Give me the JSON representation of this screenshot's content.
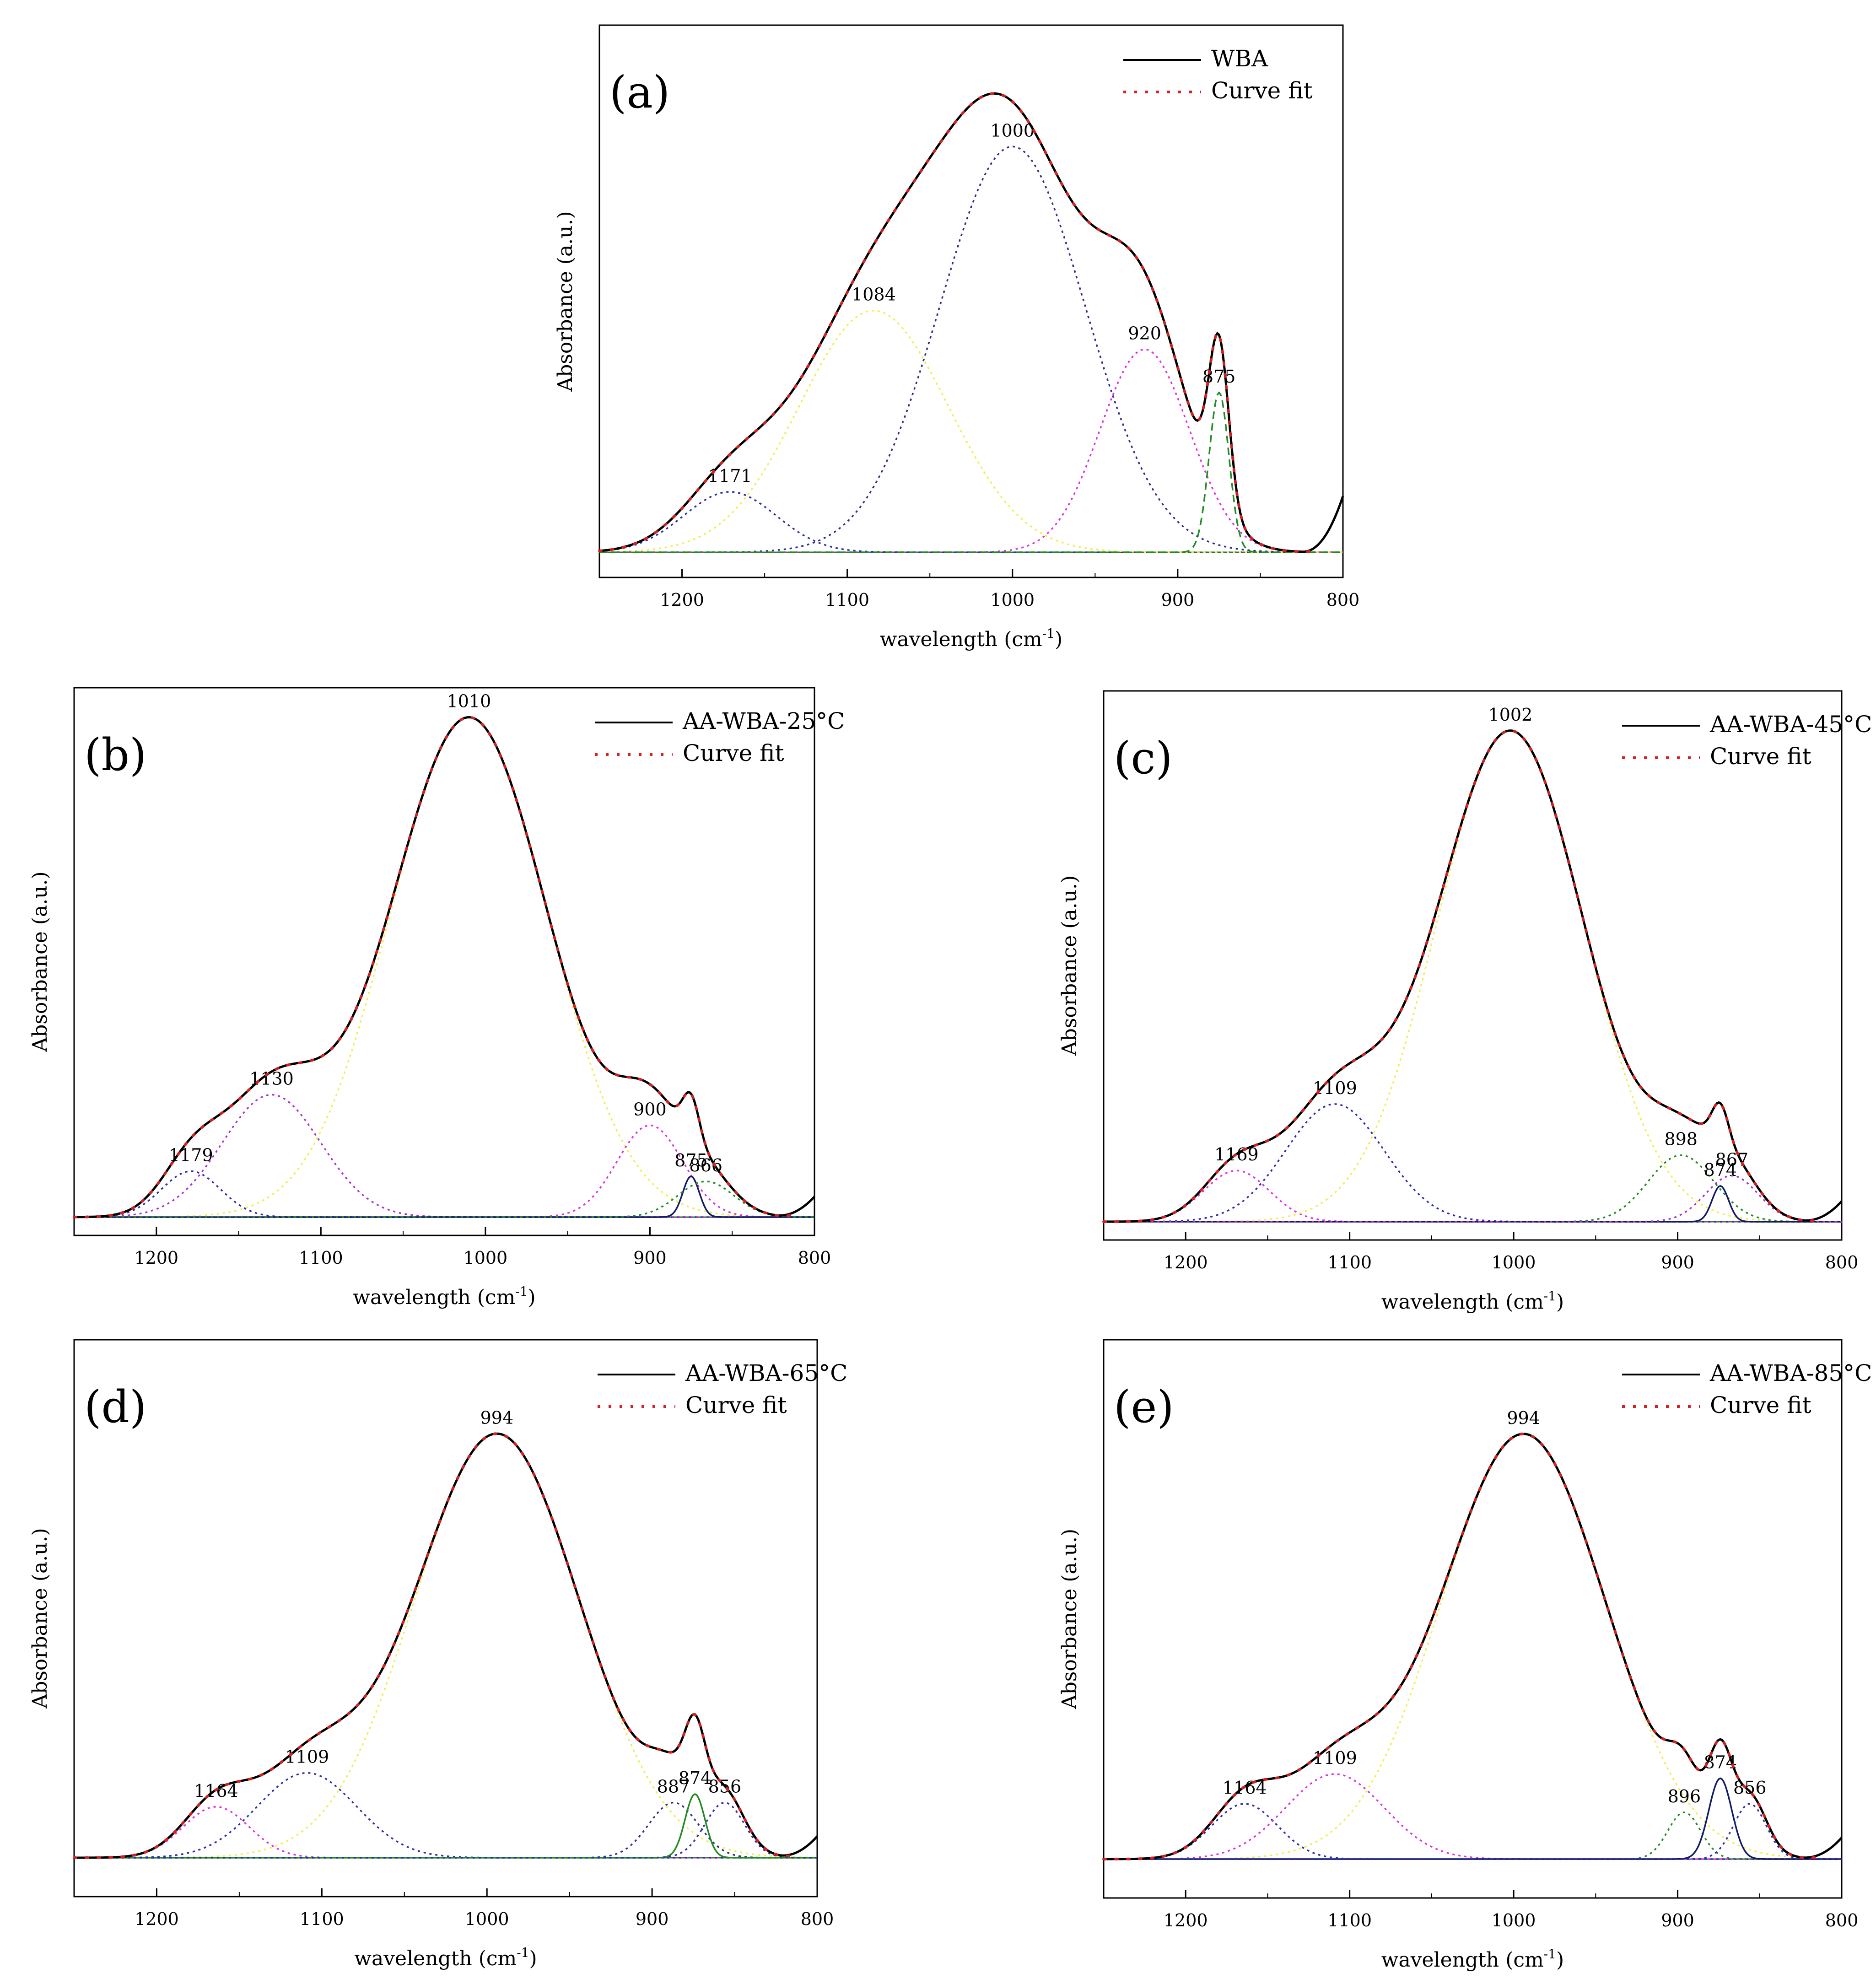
{
  "chart_data": [
    {
      "type": "line",
      "panel_label": "(a)",
      "xlabel": "wavelength (cm",
      "xlabel_sup": "-1",
      "xlabel_close": ")",
      "ylabel": "Absorbance (a.u.)",
      "xlim": [
        1250,
        800
      ],
      "ylim": [
        0,
        1.2
      ],
      "xticks": [
        1200,
        1100,
        1000,
        900,
        800
      ],
      "xtick_labels": [
        "1200",
        "1100",
        "1000",
        "900",
        "800"
      ],
      "legend": [
        {
          "label": "WBA",
          "style": "solid"
        },
        {
          "label": "Curve fit",
          "style": "dotted"
        }
      ],
      "main_series": {
        "name": "WBA",
        "color": "#000000"
      },
      "fit_series": {
        "name": "Curve fit",
        "color": "#d62020"
      },
      "tail": {
        "x": 800,
        "y": 0.13
      },
      "peaks": [
        {
          "label": "1171",
          "center": 1171,
          "height": 0.14,
          "width": 28,
          "color": "#2e2eaa",
          "style": "dotted"
        },
        {
          "label": "1084",
          "center": 1084,
          "height": 0.56,
          "width": 45,
          "color": "#f2ee50",
          "style": "dotted"
        },
        {
          "label": "1000",
          "center": 1000,
          "height": 0.94,
          "width": 44,
          "color": "#2e2e8c",
          "style": "dotted"
        },
        {
          "label": "920",
          "center": 920,
          "height": 0.47,
          "width": 27,
          "color": "#dd33dd",
          "style": "dotted"
        },
        {
          "label": "875",
          "center": 875,
          "height": 0.37,
          "width": 6,
          "color": "#228b22",
          "style": "dashed"
        }
      ]
    },
    {
      "type": "line",
      "panel_label": "(b)",
      "xlabel": "wavelength (cm",
      "xlabel_sup": "-1",
      "xlabel_close": ")",
      "ylabel": "Absorbance (a.u.)",
      "xlim": [
        1250,
        800
      ],
      "ylim": [
        0,
        1.02
      ],
      "xticks": [
        1200,
        1100,
        1000,
        900,
        800
      ],
      "xtick_labels": [
        "1200",
        "1100",
        "1000",
        "900",
        "800"
      ],
      "legend": [
        {
          "label": "AA-WBA-25°C",
          "style": "solid"
        },
        {
          "label": "Curve fit",
          "style": "dotted"
        }
      ],
      "main_series": {
        "name": "AA-WBA-25°C",
        "color": "#000000"
      },
      "fit_series": {
        "name": "Curve fit",
        "color": "#d62020"
      },
      "tail": {
        "x": 800,
        "y": 0.04
      },
      "peaks": [
        {
          "label": "1179",
          "center": 1179,
          "height": 0.09,
          "width": 18,
          "color": "#2e2eaa",
          "style": "dotted"
        },
        {
          "label": "1130",
          "center": 1130,
          "height": 0.24,
          "width": 30,
          "color": "#aa33cc",
          "style": "dotted"
        },
        {
          "label": "1010",
          "center": 1010,
          "height": 0.98,
          "width": 48,
          "color": "#f2ee50",
          "style": "dotted"
        },
        {
          "label": "900",
          "center": 900,
          "height": 0.18,
          "width": 20,
          "color": "#dd33dd",
          "style": "dotted"
        },
        {
          "label": "875",
          "center": 875,
          "height": 0.08,
          "width": 5,
          "color": "#111a66",
          "style": "solid"
        },
        {
          "label": "866",
          "center": 866,
          "height": 0.07,
          "width": 17,
          "color": "#228b22",
          "style": "dotted"
        }
      ]
    },
    {
      "type": "line",
      "panel_label": "(c)",
      "xlabel": "wavelength (cm",
      "xlabel_sup": "-1",
      "xlabel_close": ")",
      "ylabel": "Absorbance (a.u.)",
      "xlim": [
        1250,
        800
      ],
      "ylim": [
        0,
        1.02
      ],
      "xticks": [
        1200,
        1100,
        1000,
        900,
        800
      ],
      "xtick_labels": [
        "1200",
        "1100",
        "1000",
        "900",
        "800"
      ],
      "legend": [
        {
          "label": "AA-WBA-45°C",
          "style": "solid"
        },
        {
          "label": "Curve fit",
          "style": "dotted"
        }
      ],
      "main_series": {
        "name": "AA-WBA-45°C",
        "color": "#000000"
      },
      "fit_series": {
        "name": "Curve fit",
        "color": "#d62020"
      },
      "tail": {
        "x": 800,
        "y": 0.04
      },
      "peaks": [
        {
          "label": "1169",
          "center": 1169,
          "height": 0.1,
          "width": 20,
          "color": "#dd33dd",
          "style": "dotted"
        },
        {
          "label": "1109",
          "center": 1109,
          "height": 0.23,
          "width": 30,
          "color": "#2e2eaa",
          "style": "dotted"
        },
        {
          "label": "1002",
          "center": 1002,
          "height": 0.96,
          "width": 45,
          "color": "#f2ee50",
          "style": "dotted"
        },
        {
          "label": "898",
          "center": 898,
          "height": 0.13,
          "width": 20,
          "color": "#228b22",
          "style": "dotted"
        },
        {
          "label": "874",
          "center": 874,
          "height": 0.07,
          "width": 5,
          "color": "#111a66",
          "style": "solid"
        },
        {
          "label": "867",
          "center": 867,
          "height": 0.09,
          "width": 16,
          "color": "#aa33cc",
          "style": "dotted"
        }
      ]
    },
    {
      "type": "line",
      "panel_label": "(d)",
      "xlabel": "wavelength (cm",
      "xlabel_sup": "-1",
      "xlabel_close": ")",
      "ylabel": "Absorbance (a.u.)",
      "xlim": [
        1250,
        800
      ],
      "ylim": [
        0,
        1.2
      ],
      "xticks": [
        1200,
        1100,
        1000,
        900,
        800
      ],
      "xtick_labels": [
        "1200",
        "1100",
        "1000",
        "900",
        "800"
      ],
      "legend": [
        {
          "label": "AA-WBA-65°C",
          "style": "solid"
        },
        {
          "label": "Curve fit",
          "style": "dotted"
        }
      ],
      "main_series": {
        "name": "AA-WBA-65°C",
        "color": "#000000"
      },
      "fit_series": {
        "name": "Curve fit",
        "color": "#d62020"
      },
      "tail": {
        "x": 800,
        "y": 0.05
      },
      "peaks": [
        {
          "label": "1164",
          "center": 1164,
          "height": 0.12,
          "width": 20,
          "color": "#dd33dd",
          "style": "dotted"
        },
        {
          "label": "1109",
          "center": 1109,
          "height": 0.2,
          "width": 30,
          "color": "#2e2eaa",
          "style": "dotted"
        },
        {
          "label": "994",
          "center": 994,
          "height": 1.0,
          "width": 50,
          "color": "#f2ee50",
          "style": "dotted"
        },
        {
          "label": "887",
          "center": 887,
          "height": 0.13,
          "width": 15,
          "color": "#2e2e8c",
          "style": "dotted"
        },
        {
          "label": "874",
          "center": 874,
          "height": 0.15,
          "width": 6,
          "color": "#228b22",
          "style": "solid"
        },
        {
          "label": "856",
          "center": 856,
          "height": 0.13,
          "width": 12,
          "color": "#2e2eaa",
          "style": "dotted"
        }
      ]
    },
    {
      "type": "line",
      "panel_label": "(e)",
      "xlabel": "wavelength (cm",
      "xlabel_sup": "-1",
      "xlabel_close": ")",
      "ylabel": "Absorbance (a.u.)",
      "xlim": [
        1250,
        800
      ],
      "ylim": [
        0,
        1.2
      ],
      "xticks": [
        1200,
        1100,
        1000,
        900,
        800
      ],
      "xtick_labels": [
        "1200",
        "1100",
        "1000",
        "900",
        "800"
      ],
      "legend": [
        {
          "label": "AA-WBA-85°C",
          "style": "solid"
        },
        {
          "label": "Curve fit",
          "style": "dotted"
        }
      ],
      "main_series": {
        "name": "AA-WBA-85°C",
        "color": "#000000"
      },
      "fit_series": {
        "name": "Curve fit",
        "color": "#d62020"
      },
      "tail": {
        "x": 800,
        "y": 0.05
      },
      "peaks": [
        {
          "label": "1164",
          "center": 1164,
          "height": 0.13,
          "width": 20,
          "color": "#2e2eaa",
          "style": "dotted"
        },
        {
          "label": "1109",
          "center": 1109,
          "height": 0.2,
          "width": 30,
          "color": "#dd33dd",
          "style": "dotted"
        },
        {
          "label": "994",
          "center": 994,
          "height": 1.0,
          "width": 50,
          "color": "#f2ee50",
          "style": "dotted"
        },
        {
          "label": "896",
          "center": 896,
          "height": 0.11,
          "width": 10,
          "color": "#228b22",
          "style": "dotted"
        },
        {
          "label": "874",
          "center": 874,
          "height": 0.19,
          "width": 7,
          "color": "#111a66",
          "style": "solid"
        },
        {
          "label": "856",
          "center": 856,
          "height": 0.13,
          "width": 10,
          "color": "#2e2eaa",
          "style": "dotted"
        }
      ]
    }
  ]
}
